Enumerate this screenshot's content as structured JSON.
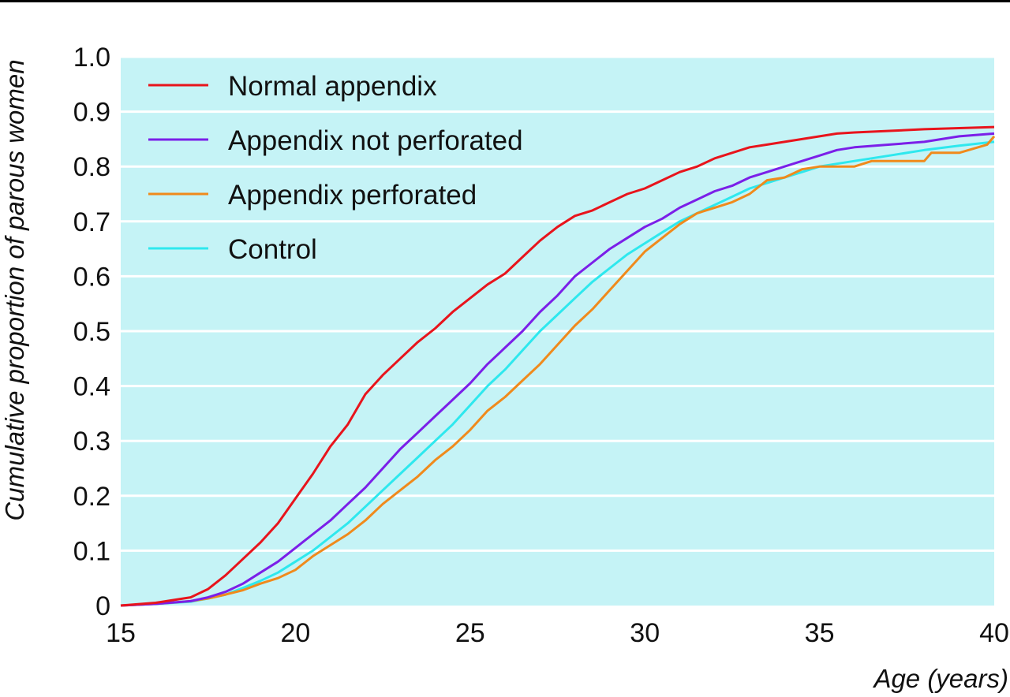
{
  "colors": {
    "plot_background": "#c5f3f6",
    "gridline": "#ffffff"
  },
  "chart_data": {
    "type": "line",
    "title": "",
    "xlabel": "Age (years)",
    "ylabel": "Cumulative proportion of parous women",
    "xlim": [
      15,
      40
    ],
    "ylim": [
      0,
      1.0
    ],
    "x_ticks": [
      15,
      20,
      25,
      30,
      35,
      40
    ],
    "y_ticks": [
      0,
      0.1,
      0.2,
      0.3,
      0.4,
      0.5,
      0.6,
      0.7,
      0.8,
      0.9,
      1.0
    ],
    "y_tick_labels": [
      "0",
      "0.1",
      "0.2",
      "0.3",
      "0.4",
      "0.5",
      "0.6",
      "0.7",
      "0.8",
      "0.9",
      "1.0"
    ],
    "grid": "horizontal",
    "legend_position": "top-left",
    "series": [
      {
        "name": "Normal appendix",
        "color": "#e8141c",
        "x": [
          15,
          16,
          17,
          17.5,
          18,
          18.5,
          19,
          19.5,
          20,
          20.5,
          21,
          21.5,
          22,
          22.5,
          23,
          23.5,
          24,
          24.5,
          25,
          25.5,
          26,
          26.5,
          27,
          27.5,
          28,
          28.5,
          29,
          29.5,
          30,
          30.5,
          31,
          31.5,
          32,
          32.5,
          33,
          33.5,
          34,
          34.5,
          35,
          35.5,
          36,
          37,
          38,
          39,
          40
        ],
        "y": [
          0,
          0.005,
          0.015,
          0.03,
          0.055,
          0.085,
          0.115,
          0.15,
          0.195,
          0.24,
          0.29,
          0.33,
          0.385,
          0.42,
          0.45,
          0.48,
          0.505,
          0.535,
          0.56,
          0.585,
          0.605,
          0.635,
          0.665,
          0.69,
          0.71,
          0.72,
          0.735,
          0.75,
          0.76,
          0.775,
          0.79,
          0.8,
          0.815,
          0.825,
          0.835,
          0.84,
          0.845,
          0.85,
          0.855,
          0.86,
          0.862,
          0.865,
          0.868,
          0.87,
          0.872
        ]
      },
      {
        "name": "Appendix not perforated",
        "color": "#7b1fe8",
        "x": [
          15,
          16,
          17,
          17.5,
          18,
          18.5,
          19,
          19.5,
          20,
          20.5,
          21,
          21.5,
          22,
          22.5,
          23,
          23.5,
          24,
          24.5,
          25,
          25.5,
          26,
          26.5,
          27,
          27.5,
          28,
          28.5,
          29,
          29.5,
          30,
          30.5,
          31,
          31.5,
          32,
          32.5,
          33,
          33.5,
          34,
          34.5,
          35,
          35.5,
          36,
          37,
          38,
          39,
          40
        ],
        "y": [
          0,
          0.003,
          0.008,
          0.015,
          0.025,
          0.04,
          0.06,
          0.08,
          0.105,
          0.13,
          0.155,
          0.185,
          0.215,
          0.25,
          0.285,
          0.315,
          0.345,
          0.375,
          0.405,
          0.44,
          0.47,
          0.5,
          0.535,
          0.565,
          0.6,
          0.625,
          0.65,
          0.67,
          0.69,
          0.705,
          0.725,
          0.74,
          0.755,
          0.765,
          0.78,
          0.79,
          0.8,
          0.81,
          0.82,
          0.83,
          0.835,
          0.84,
          0.845,
          0.855,
          0.86
        ]
      },
      {
        "name": "Appendix perforated",
        "color": "#f08a1c",
        "x": [
          15,
          16,
          17,
          17.5,
          18,
          18.5,
          19,
          19.5,
          20,
          20.5,
          21,
          21.5,
          22,
          22.5,
          23,
          23.5,
          24,
          24.5,
          25,
          25.5,
          26,
          26.5,
          27,
          27.5,
          28,
          28.5,
          29,
          29.5,
          30,
          30.5,
          31,
          31.5,
          32,
          32.5,
          33,
          33.5,
          34,
          34.5,
          35,
          36,
          36.5,
          37,
          38,
          38.2,
          39,
          39.8,
          40
        ],
        "y": [
          0,
          0.003,
          0.008,
          0.013,
          0.02,
          0.028,
          0.04,
          0.05,
          0.065,
          0.09,
          0.11,
          0.13,
          0.155,
          0.185,
          0.21,
          0.235,
          0.265,
          0.29,
          0.32,
          0.355,
          0.38,
          0.41,
          0.44,
          0.475,
          0.51,
          0.54,
          0.575,
          0.61,
          0.645,
          0.67,
          0.695,
          0.715,
          0.725,
          0.735,
          0.75,
          0.775,
          0.78,
          0.795,
          0.8,
          0.8,
          0.81,
          0.81,
          0.81,
          0.825,
          0.825,
          0.84,
          0.855
        ]
      },
      {
        "name": "Control",
        "color": "#2ee8ee",
        "x": [
          15,
          16,
          17,
          17.5,
          18,
          18.5,
          19,
          19.5,
          20,
          20.5,
          21,
          21.5,
          22,
          22.5,
          23,
          23.5,
          24,
          24.5,
          25,
          25.5,
          26,
          26.5,
          27,
          27.5,
          28,
          28.5,
          29,
          29.5,
          30,
          30.5,
          31,
          31.5,
          32,
          32.5,
          33,
          33.5,
          34,
          34.5,
          35,
          35.5,
          36,
          37,
          38,
          39,
          40
        ],
        "y": [
          0,
          0.003,
          0.007,
          0.013,
          0.02,
          0.032,
          0.045,
          0.06,
          0.08,
          0.1,
          0.125,
          0.15,
          0.18,
          0.21,
          0.24,
          0.27,
          0.3,
          0.33,
          0.365,
          0.4,
          0.43,
          0.465,
          0.5,
          0.53,
          0.56,
          0.59,
          0.615,
          0.64,
          0.66,
          0.68,
          0.7,
          0.715,
          0.73,
          0.745,
          0.76,
          0.77,
          0.78,
          0.79,
          0.8,
          0.805,
          0.81,
          0.82,
          0.83,
          0.838,
          0.845
        ]
      }
    ]
  }
}
